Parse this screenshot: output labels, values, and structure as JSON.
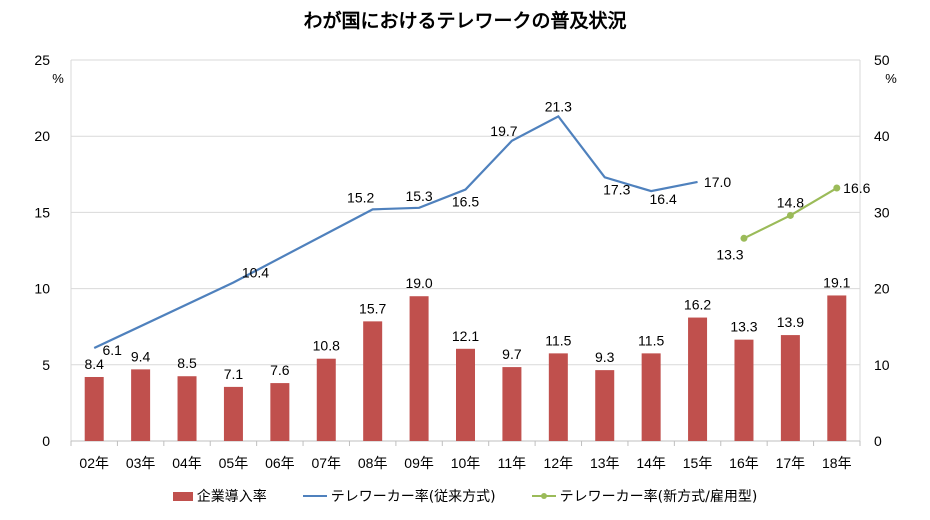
{
  "chart_data": {
    "type": "bar+line",
    "title": "わが国におけるテレワークの普及状況",
    "categories": [
      "02年",
      "03年",
      "04年",
      "05年",
      "06年",
      "07年",
      "08年",
      "09年",
      "10年",
      "11年",
      "12年",
      "13年",
      "14年",
      "15年",
      "16年",
      "17年",
      "18年"
    ],
    "left_axis": {
      "unit": "%",
      "ylim": [
        0,
        25
      ],
      "ticks": [
        0,
        5,
        10,
        15,
        20,
        25
      ]
    },
    "right_axis": {
      "unit": "%",
      "ylim": [
        0,
        50
      ],
      "ticks": [
        0,
        10,
        20,
        30,
        40,
        50
      ]
    },
    "grid": true,
    "legend_position": "bottom",
    "series": [
      {
        "name": "企業導入率",
        "kind": "bar",
        "axis": "right",
        "color": "#c0504d",
        "values": [
          8.4,
          9.4,
          8.5,
          7.1,
          7.6,
          10.8,
          15.7,
          19.0,
          12.1,
          9.7,
          11.5,
          9.3,
          11.5,
          16.2,
          13.3,
          13.9,
          19.1
        ]
      },
      {
        "name": "テレワーカー率(従来方式)",
        "kind": "line",
        "axis": "left",
        "color": "#4f81bd",
        "values": [
          6.1,
          null,
          null,
          10.4,
          null,
          null,
          15.2,
          15.3,
          16.5,
          19.7,
          21.3,
          17.3,
          16.4,
          17.0,
          null,
          null,
          null
        ]
      },
      {
        "name": "テレワーカー率(新方式/雇用型)",
        "kind": "line",
        "axis": "left",
        "color": "#9bbb59",
        "markers": true,
        "values": [
          null,
          null,
          null,
          null,
          null,
          null,
          null,
          null,
          null,
          null,
          null,
          null,
          null,
          null,
          13.3,
          14.8,
          16.6
        ]
      }
    ]
  }
}
